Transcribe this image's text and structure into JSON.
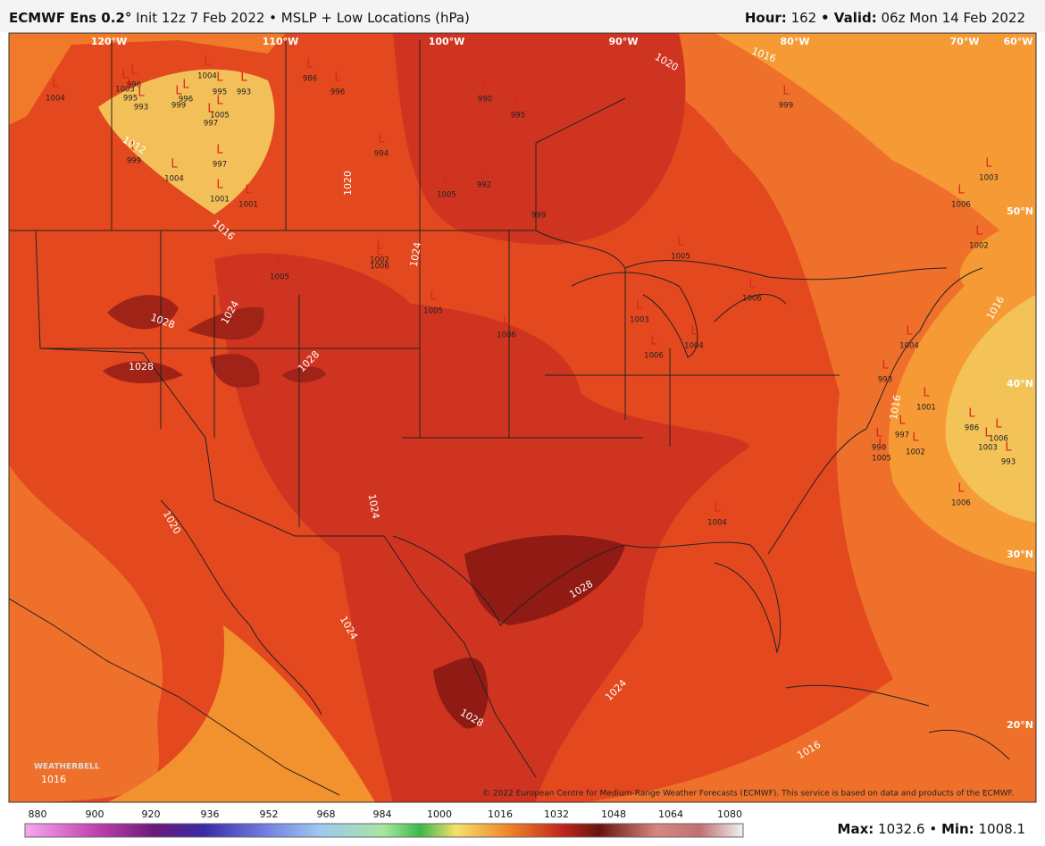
{
  "header": {
    "title": "ECMWF Ens 0.2°",
    "subtitle": "Init 12z 7 Feb 2022 • MSLP + Low Locations (hPa)",
    "hour_label": "Hour:",
    "hour": "162",
    "valid_label": "• Valid:",
    "valid": "06z Mon 14 Feb 2022"
  },
  "map": {
    "longitudes": [
      "120°W",
      "110°W",
      "100°W",
      "90°W",
      "80°W",
      "70°W",
      "60°W"
    ],
    "latitudes": [
      "50°N",
      "40°N",
      "30°N",
      "20°N"
    ],
    "low_marker": "L",
    "lows": [
      1004,
      1003,
      996,
      995,
      993,
      1004,
      995,
      993,
      996,
      999,
      1005,
      997,
      999,
      997,
      1004,
      1001,
      1001,
      986,
      996,
      994,
      990,
      995,
      992,
      1005,
      999,
      999,
      1003,
      1006,
      1002,
      1005,
      1002,
      1006,
      1005,
      1006,
      1005,
      1006,
      1003,
      1004,
      1006,
      1004,
      993,
      1001,
      997,
      990,
      1005,
      1002,
      986,
      1006,
      1003,
      993,
      1006,
      1004
    ],
    "contour_labels": [
      1020,
      1016,
      1020,
      1016,
      1024,
      1028,
      1028,
      1028,
      1024,
      1024,
      1020,
      1024,
      1028,
      1028,
      1024,
      1016,
      1016,
      1016,
      1016,
      1012
    ],
    "credit": "© 2022 European Centre for Medium-Range Weather Forecasts (ECMWF). This service is based on data and products of the ECMWF.",
    "logo": "WEATHERBELL"
  },
  "colorbar": {
    "ticks": [
      880,
      900,
      920,
      936,
      952,
      968,
      984,
      1000,
      1016,
      1032,
      1048,
      1064,
      1080
    ]
  },
  "footer": {
    "max_label": "Max:",
    "max": "1032.6",
    "sep": "•",
    "min_label": "Min:",
    "min": "1008.1"
  }
}
